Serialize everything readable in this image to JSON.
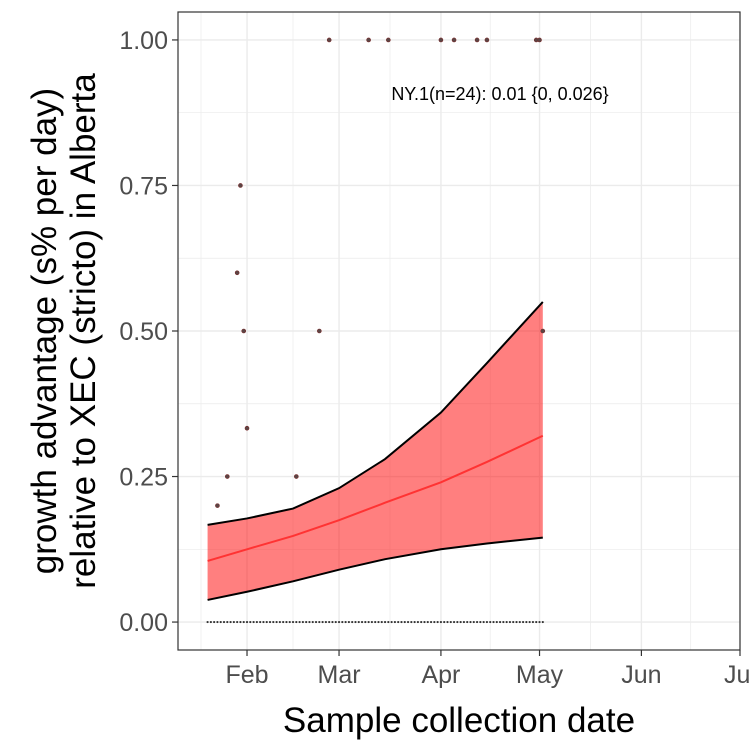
{
  "chart_data": {
    "type": "line",
    "title": "",
    "xlabel": "Sample collection date",
    "ylabel": [
      "growth advantage (s% per day)",
      "relative to XEC (stricto) in Alberta"
    ],
    "x_axis": {
      "type": "date",
      "range": [
        "2025-01-11",
        "2025-07-01"
      ],
      "ticks": [
        {
          "date": "2025-02-01",
          "label": "Feb"
        },
        {
          "date": "2025-03-01",
          "label": "Mar"
        },
        {
          "date": "2025-04-01",
          "label": "Apr"
        },
        {
          "date": "2025-05-01",
          "label": "May"
        },
        {
          "date": "2025-06-01",
          "label": "Jun"
        },
        {
          "date": "2025-07-01",
          "label": "Jul"
        }
      ]
    },
    "y_axis": {
      "range": [
        -0.048,
        1.048
      ],
      "ticks": [
        0.0,
        0.25,
        0.5,
        0.75,
        1.0
      ],
      "tick_labels": [
        "0.00",
        "0.25",
        "0.50",
        "0.75",
        "1.00"
      ]
    },
    "grid": true,
    "annotation": "NY.1(n=24): 0.01 {0, 0.026}",
    "colors": {
      "ribbon_fill": "#ff0000",
      "ribbon_opacity": 0.5,
      "fit_line": "#ff3333",
      "bound_line": "#000000",
      "points": "#5a4545",
      "gridline": "#ebebeb",
      "frame": "#333333"
    },
    "series": [
      {
        "kind": "fit",
        "x": [
          "2025-01-20",
          "2025-02-01",
          "2025-02-15",
          "2025-03-01",
          "2025-03-15",
          "2025-04-01",
          "2025-04-15",
          "2025-05-02"
        ],
        "y": [
          0.105,
          0.125,
          0.148,
          0.175,
          0.205,
          0.24,
          0.275,
          0.32
        ],
        "lower": [
          0.038,
          0.052,
          0.07,
          0.09,
          0.108,
          0.125,
          0.135,
          0.145
        ],
        "upper": [
          0.167,
          0.178,
          0.195,
          0.23,
          0.28,
          0.36,
          0.445,
          0.55
        ]
      },
      {
        "kind": "observed",
        "points": [
          {
            "x": "2025-01-23",
            "y": 0.2
          },
          {
            "x": "2025-01-26",
            "y": 0.25
          },
          {
            "x": "2025-01-29",
            "y": 0.6
          },
          {
            "x": "2025-01-30",
            "y": 0.75
          },
          {
            "x": "2025-01-31",
            "y": 0.5
          },
          {
            "x": "2025-02-01",
            "y": 0.333
          },
          {
            "x": "2025-02-16",
            "y": 0.25
          },
          {
            "x": "2025-02-23",
            "y": 0.5
          },
          {
            "x": "2025-02-26",
            "y": 1.0
          },
          {
            "x": "2025-03-10",
            "y": 1.0
          },
          {
            "x": "2025-03-16",
            "y": 1.0
          },
          {
            "x": "2025-04-01",
            "y": 1.0
          },
          {
            "x": "2025-04-05",
            "y": 1.0
          },
          {
            "x": "2025-04-12",
            "y": 1.0
          },
          {
            "x": "2025-04-15",
            "y": 1.0
          },
          {
            "x": "2025-04-30",
            "y": 1.0
          },
          {
            "x": "2025-05-01",
            "y": 1.0
          },
          {
            "x": "2025-05-02",
            "y": 0.5
          }
        ],
        "zero_points": {
          "from": "2025-01-20",
          "to": "2025-05-02",
          "y": 0.0
        }
      }
    ]
  }
}
